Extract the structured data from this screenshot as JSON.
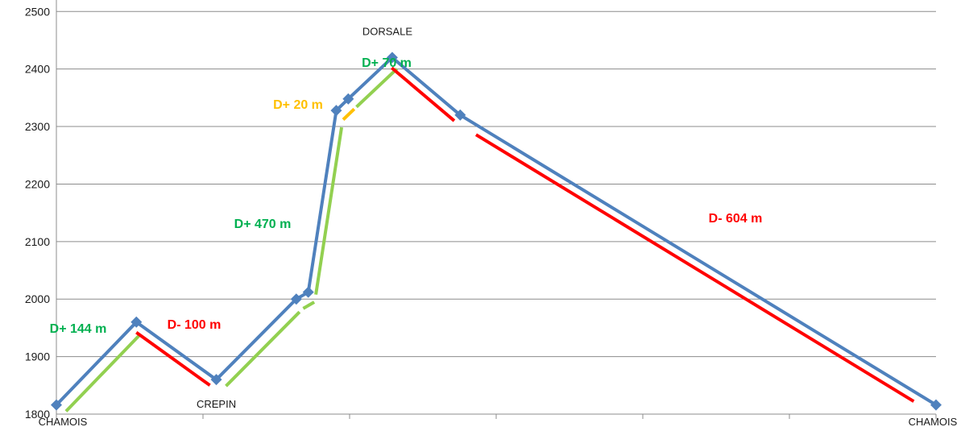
{
  "chart_data": {
    "type": "line",
    "title": "",
    "xlabel": "",
    "ylabel": "",
    "ylim": [
      1800,
      2520
    ],
    "yticks": [
      1800,
      1900,
      2000,
      2100,
      2200,
      2300,
      2400,
      2500
    ],
    "grid": true,
    "colors": {
      "profile": "#4f81bd",
      "ascent": "#92d050",
      "descent": "#ff0000",
      "ascent_small": "#ffc000",
      "grid": "#8c8c8c",
      "label_green": "#00b050",
      "label_red": "#ff0000",
      "label_orange": "#ffc000"
    },
    "series": [
      {
        "values": [
          1816,
          1960,
          1860,
          2000,
          2012,
          2328,
          2348,
          2420,
          2320,
          1816
        ],
        "x": [
          0,
          1,
          2,
          3,
          3.15,
          3.5,
          3.65,
          4.2,
          5.05,
          11
        ]
      }
    ],
    "point_labels": [
      {
        "index": 0,
        "text": "CHAMOIS"
      },
      {
        "index": 2,
        "text": "CREPIN"
      },
      {
        "index": 7,
        "text": "DORSALE"
      },
      {
        "index": 9,
        "text": "CHAMOIS"
      }
    ],
    "segments": [
      {
        "from": 0,
        "to": 1,
        "kind": "ascent",
        "label": "D+ 144 m",
        "label_color": "label_green"
      },
      {
        "from": 1,
        "to": 2,
        "kind": "descent",
        "label": "D- 100 m",
        "label_color": "label_red"
      },
      {
        "from": 2,
        "to": 3,
        "kind": "ascent",
        "label": "",
        "label_color": "label_green"
      },
      {
        "from": 3,
        "to": 5,
        "kind": "ascent",
        "label": "D+ 470 m",
        "label_color": "label_green"
      },
      {
        "from": 5,
        "to": 6,
        "kind": "ascent_small",
        "label": "D+ 20 m",
        "label_color": "label_orange"
      },
      {
        "from": 6,
        "to": 7,
        "kind": "ascent",
        "label": "D+ 70 m",
        "label_color": "label_green"
      },
      {
        "from": 7,
        "to": 9,
        "kind": "descent",
        "label": "D- 604 m",
        "label_color": "label_red"
      }
    ]
  }
}
